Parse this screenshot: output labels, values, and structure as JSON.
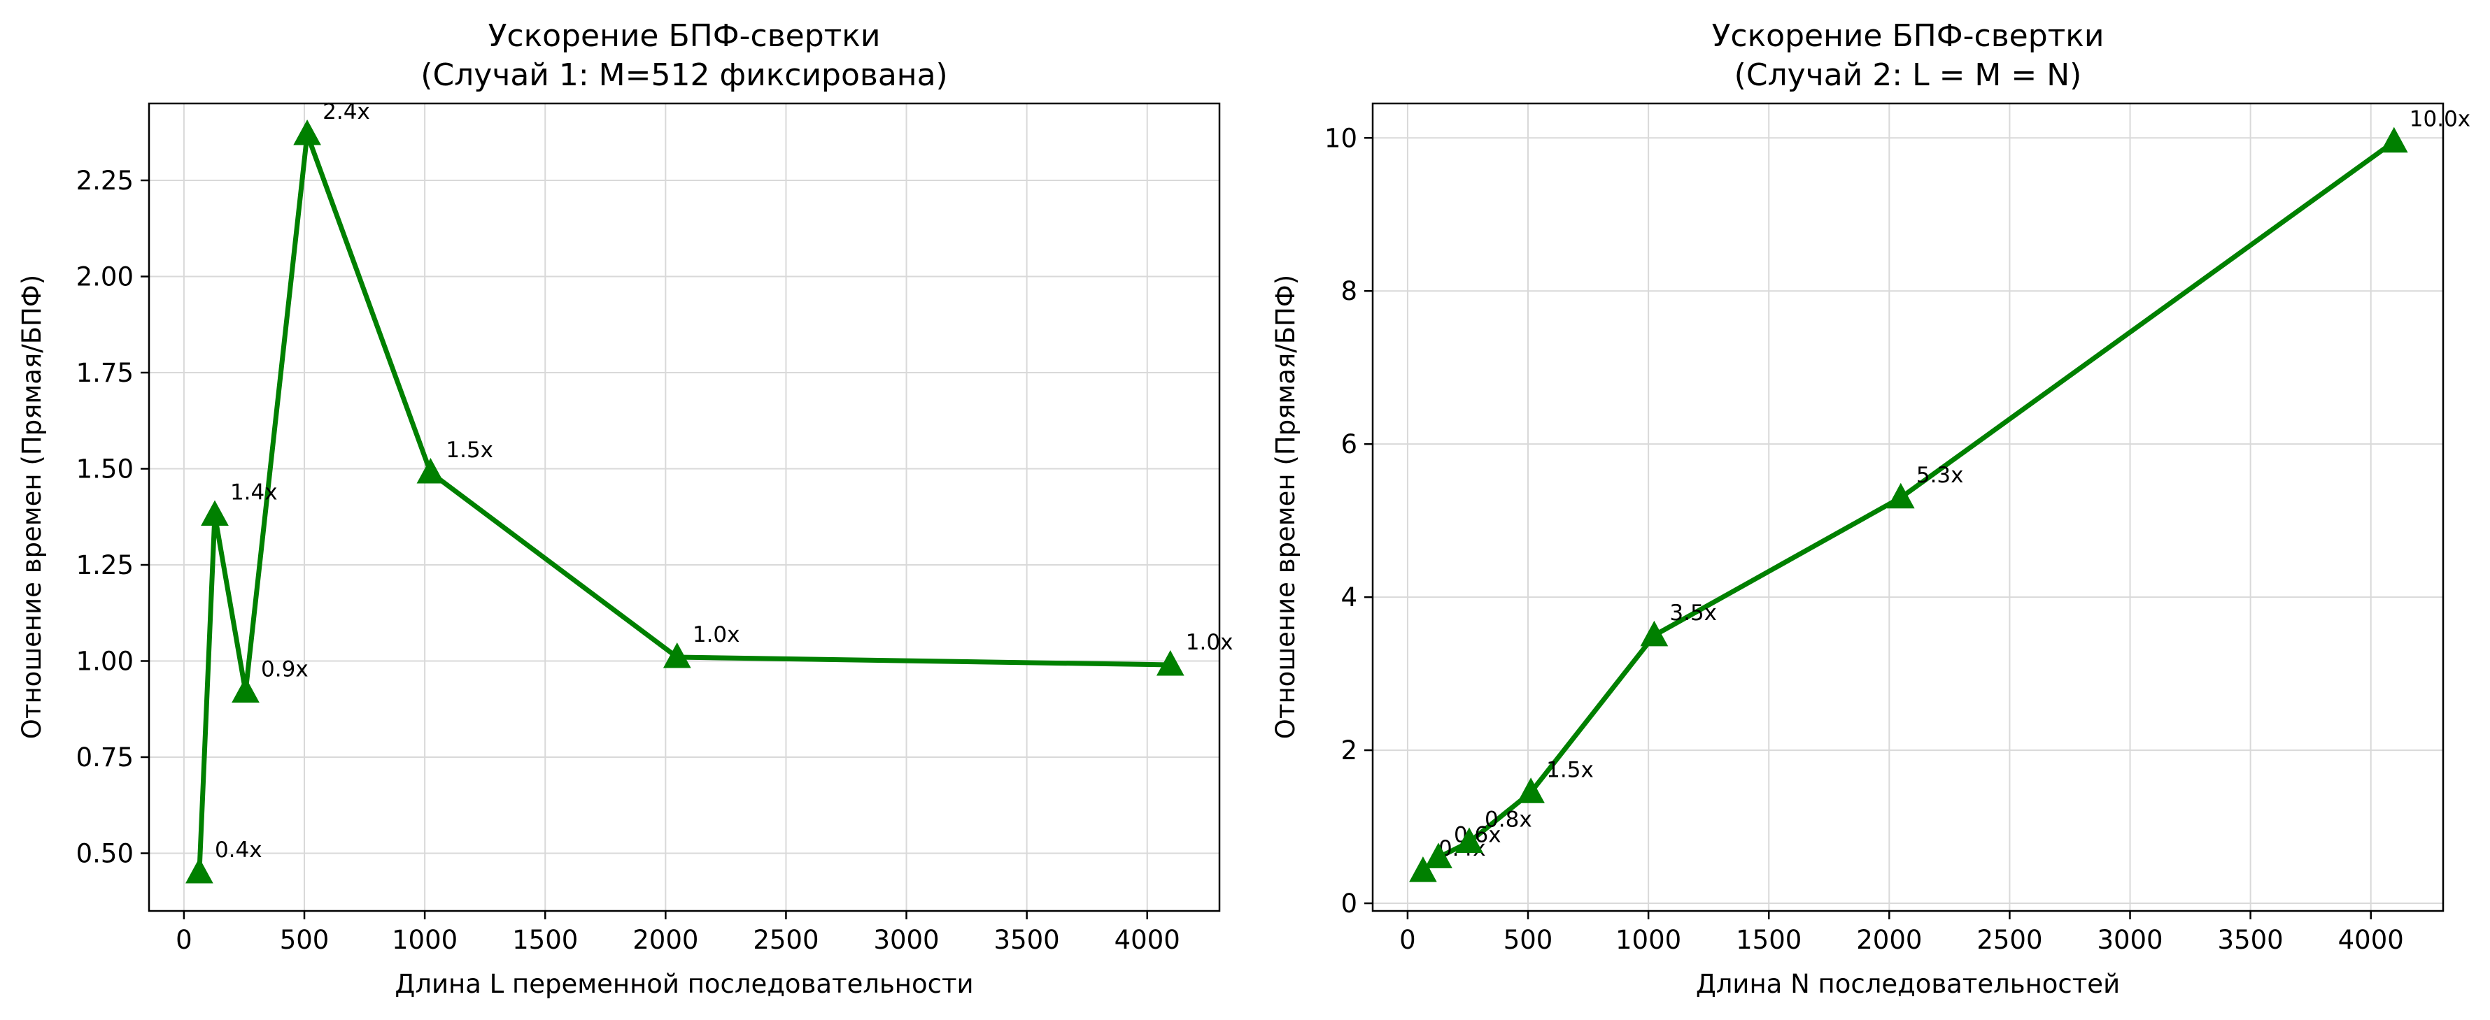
{
  "chart_data": [
    {
      "type": "line",
      "title_lines": [
        "Ускорение БПФ-свертки",
        "(Случай 1: M=512 фиксирована)"
      ],
      "xlabel": "Длина L переменной последовательности",
      "ylabel": "Отношение времен (Прямая/БПФ)",
      "xlim": [
        -145,
        4300
      ],
      "ylim": [
        0.35,
        2.45
      ],
      "xticks": [
        0,
        500,
        1000,
        1500,
        2000,
        2500,
        3000,
        3500,
        4000
      ],
      "yticks": [
        0.5,
        0.75,
        1.0,
        1.25,
        1.5,
        1.75,
        2.0,
        2.25
      ],
      "ytick_labels": [
        "0.50",
        "0.75",
        "1.00",
        "1.25",
        "1.50",
        "1.75",
        "2.00",
        "2.25"
      ],
      "grid": true,
      "color": "#008000",
      "marker": "triangle",
      "x": [
        64,
        128,
        256,
        512,
        1024,
        2048,
        4096
      ],
      "y": [
        0.45,
        1.38,
        0.92,
        2.37,
        1.49,
        1.01,
        0.99
      ],
      "labels": [
        "0.4x",
        "1.4x",
        "0.9x",
        "2.4x",
        "1.5x",
        "1.0x",
        "1.0x"
      ]
    },
    {
      "type": "line",
      "title_lines": [
        "Ускорение БПФ-свертки",
        "(Случай 2: L = M = N)"
      ],
      "xlabel": "Длина N последовательностей",
      "ylabel": "Отношение времен (Прямая/БПФ)",
      "xlim": [
        -145,
        4300
      ],
      "ylim": [
        -0.1,
        10.45
      ],
      "xticks": [
        0,
        500,
        1000,
        1500,
        2000,
        2500,
        3000,
        3500,
        4000
      ],
      "yticks": [
        0,
        2,
        4,
        6,
        8,
        10
      ],
      "ytick_labels": [
        "0",
        "2",
        "4",
        "6",
        "8",
        "10"
      ],
      "grid": true,
      "color": "#008000",
      "marker": "triangle",
      "x": [
        64,
        128,
        256,
        512,
        1024,
        2048,
        4096
      ],
      "y": [
        0.42,
        0.6,
        0.8,
        1.45,
        3.5,
        5.3,
        9.95
      ],
      "labels": [
        "0.4x",
        "0.6x",
        "0.8x",
        "1.5x",
        "3.5x",
        "5.3x",
        "10.0x"
      ]
    }
  ]
}
